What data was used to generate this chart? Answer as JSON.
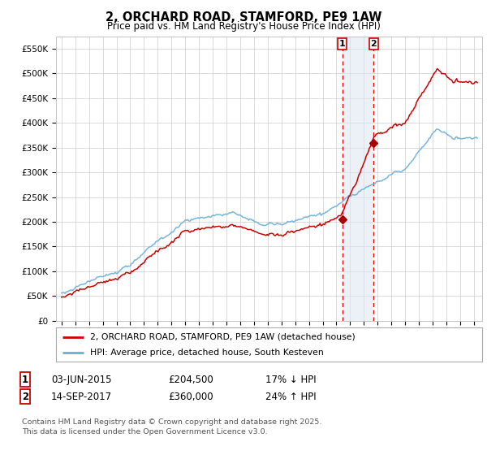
{
  "title": "2, ORCHARD ROAD, STAMFORD, PE9 1AW",
  "subtitle": "Price paid vs. HM Land Registry's House Price Index (HPI)",
  "legend_line1": "2, ORCHARD ROAD, STAMFORD, PE9 1AW (detached house)",
  "legend_line2": "HPI: Average price, detached house, South Kesteven",
  "transaction1_date": "03-JUN-2015",
  "transaction1_price": "£204,500",
  "transaction1_hpi": "17% ↓ HPI",
  "transaction2_date": "14-SEP-2017",
  "transaction2_price": "£360,000",
  "transaction2_hpi": "24% ↑ HPI",
  "footer": "Contains HM Land Registry data © Crown copyright and database right 2025.\nThis data is licensed under the Open Government Licence v3.0.",
  "hpi_color": "#6aaed6",
  "price_color": "#cc0000",
  "marker_color": "#aa0000",
  "shade_color": "#dce6f1",
  "vline_color": "#dd0000",
  "background_color": "#ffffff",
  "grid_color": "#cccccc",
  "ylim": [
    0,
    575000
  ],
  "yticks": [
    0,
    50000,
    100000,
    150000,
    200000,
    250000,
    300000,
    350000,
    400000,
    450000,
    500000,
    550000
  ],
  "transaction1_year": 2015.42,
  "transaction2_year": 2017.71,
  "transaction1_price_val": 204500,
  "transaction2_price_val": 360000
}
